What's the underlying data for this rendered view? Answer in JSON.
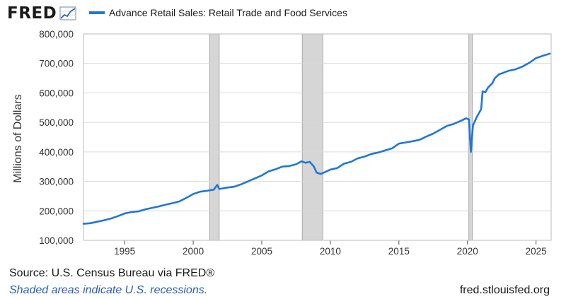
{
  "logo": {
    "text": "FRED",
    "icon": "chart-line-icon"
  },
  "legend": {
    "label": "Advance Retail Sales: Retail Trade and Food Services",
    "color": "#1f77d6"
  },
  "colors": {
    "line": "#1f77d6",
    "grid": "#d9d9d9",
    "recession": "#d6d6d6",
    "recession_edge": "#9a9a9a",
    "frame": "#bbbbbb"
  },
  "footer": {
    "source": "Source: U.S. Census Bureau via FRED®",
    "shade_note": "Shaded areas indicate U.S. recessions.",
    "site": "fred.stlouisfed.org"
  },
  "chart_data": {
    "type": "line",
    "title": "",
    "xlabel": "",
    "ylabel": "Millions of Dollars",
    "xlim": [
      1992.0,
      2026.1
    ],
    "ylim": [
      100000,
      800000
    ],
    "yticks": [
      100000,
      200000,
      300000,
      400000,
      500000,
      600000,
      700000,
      800000
    ],
    "ytick_labels": [
      "100,000",
      "200,000",
      "300,000",
      "400,000",
      "500,000",
      "600,000",
      "700,000",
      "800,000"
    ],
    "xticks": [
      1995,
      2000,
      2005,
      2010,
      2015,
      2020,
      2025
    ],
    "xtick_labels": [
      "1995",
      "2000",
      "2005",
      "2010",
      "2015",
      "2020",
      "2025"
    ],
    "grid": true,
    "legend_position": "top",
    "recessions": [
      [
        2001.2,
        2001.9
      ],
      [
        2007.95,
        2009.45
      ],
      [
        2020.1,
        2020.35
      ]
    ],
    "series": [
      {
        "name": "Advance Retail Sales: Retail Trade and Food Services",
        "points": [
          [
            1992.0,
            156000
          ],
          [
            1992.5,
            158000
          ],
          [
            1993.0,
            163000
          ],
          [
            1993.5,
            168000
          ],
          [
            1994.0,
            174000
          ],
          [
            1994.5,
            182000
          ],
          [
            1995.0,
            191000
          ],
          [
            1995.5,
            196000
          ],
          [
            1996.0,
            198000
          ],
          [
            1996.5,
            205000
          ],
          [
            1997.0,
            210000
          ],
          [
            1997.5,
            215000
          ],
          [
            1998.0,
            221000
          ],
          [
            1998.5,
            226000
          ],
          [
            1999.0,
            232000
          ],
          [
            1999.5,
            244000
          ],
          [
            2000.0,
            257000
          ],
          [
            2000.5,
            265000
          ],
          [
            2001.0,
            268000
          ],
          [
            2001.5,
            272000
          ],
          [
            2001.75,
            288000
          ],
          [
            2001.9,
            274000
          ],
          [
            2002.5,
            279000
          ],
          [
            2003.0,
            282000
          ],
          [
            2003.5,
            290000
          ],
          [
            2004.0,
            300000
          ],
          [
            2004.5,
            310000
          ],
          [
            2005.0,
            320000
          ],
          [
            2005.5,
            334000
          ],
          [
            2006.0,
            341000
          ],
          [
            2006.5,
            350000
          ],
          [
            2007.0,
            352000
          ],
          [
            2007.5,
            358000
          ],
          [
            2007.9,
            368000
          ],
          [
            2008.2,
            363000
          ],
          [
            2008.5,
            366000
          ],
          [
            2008.8,
            350000
          ],
          [
            2009.0,
            330000
          ],
          [
            2009.3,
            325000
          ],
          [
            2009.6,
            331000
          ],
          [
            2010.0,
            340000
          ],
          [
            2010.5,
            345000
          ],
          [
            2011.0,
            360000
          ],
          [
            2011.5,
            366000
          ],
          [
            2012.0,
            378000
          ],
          [
            2012.5,
            384000
          ],
          [
            2013.0,
            393000
          ],
          [
            2013.5,
            398000
          ],
          [
            2014.0,
            405000
          ],
          [
            2014.5,
            412000
          ],
          [
            2015.0,
            428000
          ],
          [
            2015.5,
            432000
          ],
          [
            2016.0,
            436000
          ],
          [
            2016.5,
            441000
          ],
          [
            2017.0,
            452000
          ],
          [
            2017.5,
            462000
          ],
          [
            2018.0,
            475000
          ],
          [
            2018.5,
            488000
          ],
          [
            2019.0,
            495000
          ],
          [
            2019.5,
            505000
          ],
          [
            2019.9,
            514000
          ],
          [
            2020.1,
            510000
          ],
          [
            2020.25,
            400000
          ],
          [
            2020.4,
            490000
          ],
          [
            2020.7,
            520000
          ],
          [
            2021.0,
            545000
          ],
          [
            2021.1,
            605000
          ],
          [
            2021.3,
            602000
          ],
          [
            2021.5,
            618000
          ],
          [
            2021.8,
            632000
          ],
          [
            2022.0,
            650000
          ],
          [
            2022.3,
            663000
          ],
          [
            2022.6,
            668000
          ],
          [
            2023.0,
            675000
          ],
          [
            2023.5,
            680000
          ],
          [
            2024.0,
            689000
          ],
          [
            2024.5,
            702000
          ],
          [
            2025.0,
            718000
          ],
          [
            2025.5,
            726000
          ],
          [
            2026.0,
            733000
          ]
        ]
      }
    ]
  }
}
